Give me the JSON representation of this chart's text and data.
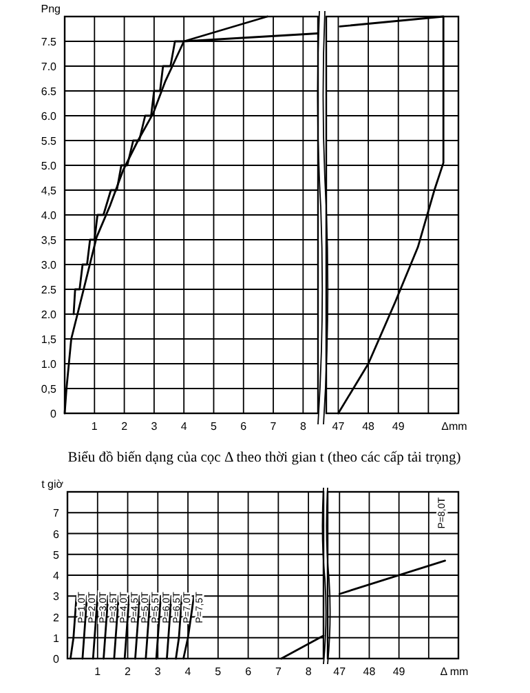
{
  "chart_data": [
    {
      "type": "line",
      "ylabel": "Png",
      "xlim": [
        0,
        8.5
      ],
      "ylim": [
        0,
        8
      ],
      "grid": true,
      "xticks": [
        1,
        2,
        3,
        4,
        5,
        6,
        7,
        8
      ],
      "yticks": [
        0,
        {
          "value": 0.5,
          "label": "0,5"
        },
        {
          "value": 1,
          "label": "1.0"
        },
        {
          "value": 1.5,
          "label": "1,5"
        },
        {
          "value": 2,
          "label": "2.0"
        },
        {
          "value": 2.5,
          "label": "2.5"
        },
        {
          "value": 3,
          "label": "3.0"
        },
        {
          "value": 3.5,
          "label": "3,5"
        },
        {
          "value": 4,
          "label": "4.0"
        },
        {
          "value": 4.5,
          "label": "4,5"
        },
        {
          "value": 5,
          "label": "5.0"
        },
        {
          "value": 5.5,
          "label": "5.5"
        },
        {
          "value": 6,
          "label": "6.0"
        },
        {
          "value": 6.5,
          "label": "6.5"
        },
        {
          "value": 7,
          "label": "7.0"
        },
        {
          "value": 7.5,
          "label": "7.5"
        },
        {
          "value": 8,
          "label": null
        }
      ],
      "series": [
        {
          "color": "#000000",
          "x": [
            0,
            0.06,
            0.22,
            0.45,
            0.76,
            1.07,
            1.53,
            1.96,
            2.46,
            2.97,
            3.38,
            4.0,
            8.49
          ],
          "values": [
            0,
            0.5,
            1.5,
            2.05,
            2.8,
            3.55,
            4.2,
            4.9,
            5.5,
            6.05,
            6.7,
            7.5,
            7.66
          ]
        },
        {
          "color": "#000000",
          "x": [
            0.3,
            0.35,
            0.5,
            0.6,
            0.75,
            0.85,
            1.0,
            1.1,
            1.3,
            1.55,
            1.75,
            1.9,
            2.1,
            2.3,
            2.5,
            2.7,
            2.9,
            3.0,
            3.2,
            3.3,
            3.55,
            3.7,
            4.0,
            6.8
          ],
          "values": [
            2.0,
            2.5,
            2.5,
            3.0,
            3.0,
            3.5,
            3.5,
            4.0,
            4.0,
            4.5,
            4.5,
            5.0,
            5.0,
            5.5,
            5.5,
            6.0,
            6.0,
            6.5,
            6.5,
            7.0,
            7.0,
            7.5,
            7.5,
            8.0
          ]
        }
      ]
    },
    {
      "type": "line",
      "xlabel": "Δmm",
      "xlim": [
        46.6,
        51
      ],
      "ylim": [
        0,
        8
      ],
      "grid": true,
      "tick_labels": "x",
      "xticks": [
        47,
        48,
        49,
        {
          "value": 50,
          "label": null
        }
      ],
      "yticks": [
        {
          "value": 0.5,
          "label": null
        },
        {
          "value": 1,
          "label": null
        },
        {
          "value": 1.5,
          "label": null
        },
        {
          "value": 2,
          "label": null
        },
        {
          "value": 2.5,
          "label": null
        },
        {
          "value": 3,
          "label": null
        },
        {
          "value": 3.5,
          "label": null
        },
        {
          "value": 4,
          "label": null
        },
        {
          "value": 4.5,
          "label": null
        },
        {
          "value": 5,
          "label": null
        },
        {
          "value": 5.5,
          "label": null
        },
        {
          "value": 6,
          "label": null
        },
        {
          "value": 6.5,
          "label": null
        },
        {
          "value": 7,
          "label": null
        },
        {
          "value": 7.5,
          "label": null
        }
      ],
      "series": [
        {
          "color": "#000000",
          "x": [
            47.05,
            50.5,
            50.5,
            50.2,
            49.65,
            48.9,
            48.0,
            47.0
          ],
          "values": [
            7.8,
            8.0,
            5.05,
            4.5,
            3.35,
            2.25,
            1.0,
            0
          ]
        }
      ]
    },
    {
      "type": "line",
      "title": "Biểu đồ biến dạng của cọc Δ theo thời gian t (theo các cấp tải trọng)",
      "ylabel": "t giờ",
      "xlim": [
        0,
        8.5
      ],
      "ylim": [
        0,
        8
      ],
      "grid": true,
      "xticks": [
        1,
        2,
        3,
        4,
        5,
        6,
        7,
        8
      ],
      "yticks": [
        0,
        1,
        2,
        3,
        4,
        5,
        6,
        7
      ],
      "series": [
        {
          "name": "P=1,0T",
          "color": "#000000",
          "x": [
            0.1,
            0.2,
            0.25,
            0.3
          ],
          "values": [
            0,
            1,
            2,
            3
          ]
        },
        {
          "name": "P=2,0T",
          "color": "#000000",
          "x": [
            0.5,
            0.55,
            0.6,
            0.65
          ],
          "values": [
            0,
            1,
            2,
            3
          ]
        },
        {
          "name": "P=3,0T",
          "color": "#000000",
          "x": [
            0.85,
            0.9,
            0.95,
            1.0
          ],
          "values": [
            0,
            1,
            2,
            3
          ]
        },
        {
          "name": "P=3,5T",
          "color": "#000000",
          "x": [
            1.2,
            1.25,
            1.3,
            1.35
          ],
          "values": [
            0,
            1,
            2,
            3
          ]
        },
        {
          "name": "P=4,0T",
          "color": "#000000",
          "x": [
            1.55,
            1.6,
            1.65,
            1.7
          ],
          "values": [
            0,
            1,
            2,
            3
          ]
        },
        {
          "name": "P=4,5T",
          "color": "#000000",
          "x": [
            1.9,
            1.95,
            2.0,
            2.05
          ],
          "values": [
            0,
            1,
            2,
            3
          ]
        },
        {
          "name": "P=5,0T",
          "color": "#000000",
          "x": [
            2.25,
            2.3,
            2.35,
            2.4
          ],
          "values": [
            0,
            1,
            2,
            3
          ]
        },
        {
          "name": "P=5,5T",
          "color": "#000000",
          "x": [
            2.6,
            2.65,
            2.7,
            2.75
          ],
          "values": [
            0,
            1,
            2,
            3
          ]
        },
        {
          "name": "P=6,0T",
          "color": "#000000",
          "x": [
            2.95,
            3.0,
            3.05,
            3.1
          ],
          "values": [
            0,
            1,
            2,
            3
          ]
        },
        {
          "name": "P=6,5T",
          "color": "#000000",
          "x": [
            3.3,
            3.35,
            3.4,
            3.45
          ],
          "values": [
            0,
            1,
            2,
            3
          ]
        },
        {
          "name": "P=7,0T",
          "color": "#000000",
          "x": [
            3.6,
            3.7,
            3.75,
            3.8
          ],
          "values": [
            0,
            1,
            2,
            3
          ]
        },
        {
          "name": "P=7,5T",
          "color": "#000000",
          "x": [
            3.85,
            4.0,
            4.1,
            4.2
          ],
          "values": [
            0,
            1,
            2,
            3
          ]
        },
        {
          "color": "#000000",
          "x": [
            7.1,
            8.5
          ],
          "values": [
            0,
            1.1
          ]
        }
      ]
    },
    {
      "type": "line",
      "xlabel": "Δ mm",
      "xlim": [
        46.6,
        51
      ],
      "ylim": [
        0,
        8
      ],
      "grid": true,
      "tick_labels": "x",
      "xticks": [
        47,
        48,
        49,
        {
          "value": 50,
          "label": null
        }
      ],
      "yticks": [
        {
          "value": 1,
          "label": null
        },
        {
          "value": 2,
          "label": null
        },
        {
          "value": 3,
          "label": null
        },
        {
          "value": 4,
          "label": null
        },
        {
          "value": 5,
          "label": null
        },
        {
          "value": 6,
          "label": null
        },
        {
          "value": 7,
          "label": null
        }
      ],
      "series": [
        {
          "name": "P=8,0T",
          "color": "#000000",
          "x": [
            47.0,
            50.55
          ],
          "values": [
            3.1,
            4.7
          ]
        }
      ]
    }
  ]
}
